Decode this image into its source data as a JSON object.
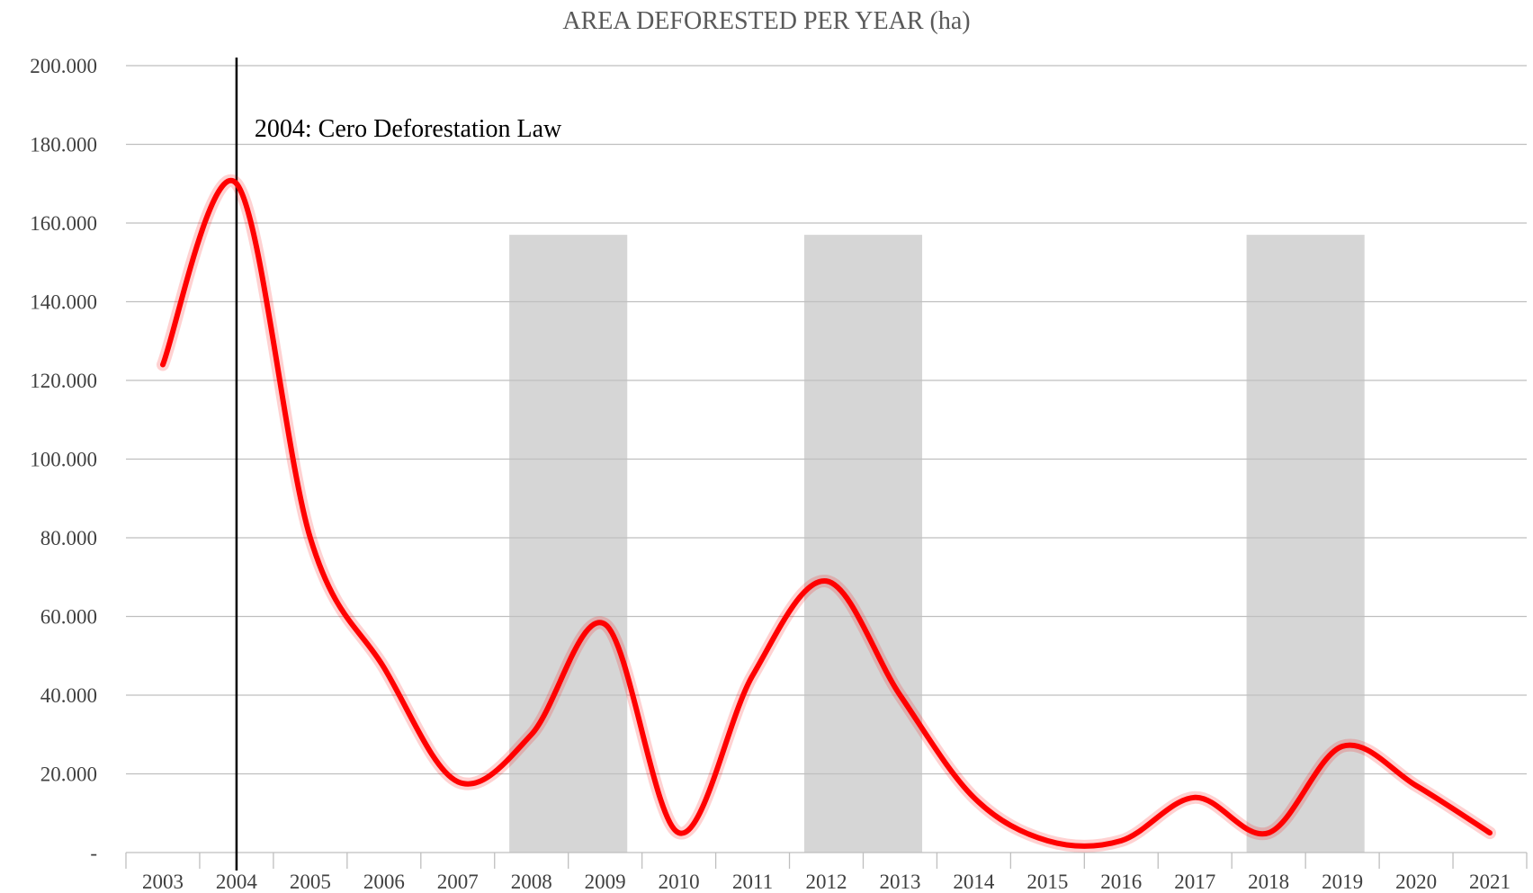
{
  "chart_data": {
    "type": "line",
    "title": "AREA DEFORESTED PER YEAR (ha)",
    "xlabel": "",
    "ylabel": "",
    "categories": [
      "2003",
      "2004",
      "2005",
      "2006",
      "2007",
      "2008",
      "2009",
      "2010",
      "2011",
      "2012",
      "2013",
      "2014",
      "2015",
      "2016",
      "2017",
      "2018",
      "2019",
      "2020",
      "2021"
    ],
    "series": [
      {
        "values": [
          124000,
          170000,
          80000,
          47000,
          18000,
          30000,
          58000,
          5000,
          45000,
          69000,
          40000,
          14000,
          3000,
          3000,
          14000,
          5000,
          27000,
          17000,
          5000
        ]
      }
    ],
    "ylim": [
      0,
      200000
    ],
    "yticks": [
      0,
      20000,
      40000,
      60000,
      80000,
      100000,
      120000,
      140000,
      160000,
      180000,
      200000
    ],
    "ytick_labels": [
      "-",
      "20.000",
      "40.000",
      "60.000",
      "80.000",
      "100.000",
      "120.000",
      "140.000",
      "160.000",
      "180.000",
      "200.000"
    ],
    "shaded_ranges": [
      {
        "from": "2008",
        "to": "2009",
        "top": 157000
      },
      {
        "from": "2012",
        "to": "2013",
        "top": 157000
      },
      {
        "from": "2018",
        "to": "2019",
        "top": 157000
      }
    ],
    "annotations": [
      {
        "at": "2004",
        "text": "2004: Cero Deforestation Law"
      }
    ],
    "grid": true,
    "line_color": "#ff0000",
    "band_color": "#d6d6d6"
  }
}
